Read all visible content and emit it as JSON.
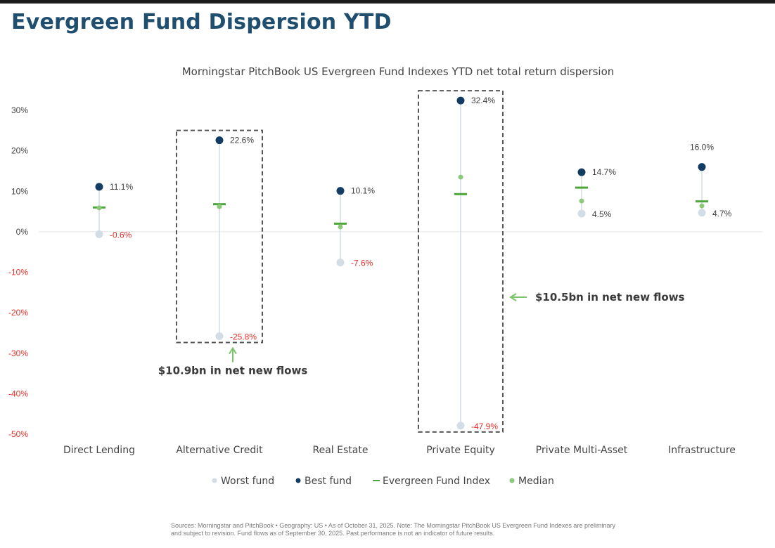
{
  "page": {
    "title": "Evergreen Fund Dispersion YTD"
  },
  "chart_data": {
    "type": "scatter",
    "title": "Morningstar PitchBook US Evergreen Fund Indexes YTD net total return dispersion",
    "xlabel": "",
    "ylabel": "",
    "ylim": [
      -50,
      30
    ],
    "yticks": [
      30,
      20,
      10,
      0,
      -10,
      -20,
      -30,
      -40,
      -50
    ],
    "ytick_labels": [
      "30%",
      "20%",
      "10%",
      "0%",
      "-10%",
      "-20%",
      "-30%",
      "-40%",
      "-50%"
    ],
    "categories": [
      "Direct Lending",
      "Alternative Credit",
      "Real Estate",
      "Private Equity",
      "Private Multi-Asset",
      "Infrastructure"
    ],
    "series": [
      {
        "name": "Worst fund",
        "marker": "dot",
        "color": "#d3dde5",
        "values": [
          -0.6,
          -25.8,
          -7.6,
          -47.9,
          4.5,
          4.7
        ],
        "labels": [
          "-0.6%",
          "-25.8%",
          "-7.6%",
          "-47.9%",
          "4.5%",
          "4.7%"
        ],
        "label_colors": [
          "#e8302b",
          "#e8302b",
          "#e8302b",
          "#e8302b",
          "#404040",
          "#404040"
        ]
      },
      {
        "name": "Best fund",
        "marker": "dot",
        "color": "#133c63",
        "values": [
          11.1,
          22.6,
          10.1,
          32.4,
          14.7,
          16.0
        ],
        "labels": [
          "11.1%",
          "22.6%",
          "10.1%",
          "32.4%",
          "14.7%",
          "16.0%"
        ],
        "label_colors": [
          "#404040",
          "#404040",
          "#404040",
          "#404040",
          "#404040",
          "#404040"
        ]
      },
      {
        "name": "Evergreen Fund Index",
        "marker": "dash",
        "color": "#4ca63a",
        "values": [
          6.0,
          6.8,
          2.0,
          9.3,
          10.9,
          7.5
        ]
      },
      {
        "name": "Median",
        "marker": "dot",
        "color": "#8cc87a",
        "values": [
          5.9,
          6.2,
          1.2,
          13.5,
          7.6,
          6.4
        ]
      }
    ],
    "highlights": [
      {
        "category": "Alternative Credit",
        "note": "$10.9bn in net new flows",
        "arrow": "up"
      },
      {
        "category": "Private Equity",
        "note": "$10.5bn in net new flows",
        "arrow": "left"
      }
    ],
    "legend": {
      "position": "bottom"
    },
    "grid": false
  },
  "footnote": {
    "lines": [
      "Sources: Morningstar and PitchBook  •  Geography: US  •  As of October 31, 2025. Note: The Morningstar PitchBook US Evergreen Fund Indexes are preliminary",
      "and subject to revision. Fund flows as of September 30, 2025. Past performance is not an indicator of future results."
    ]
  }
}
